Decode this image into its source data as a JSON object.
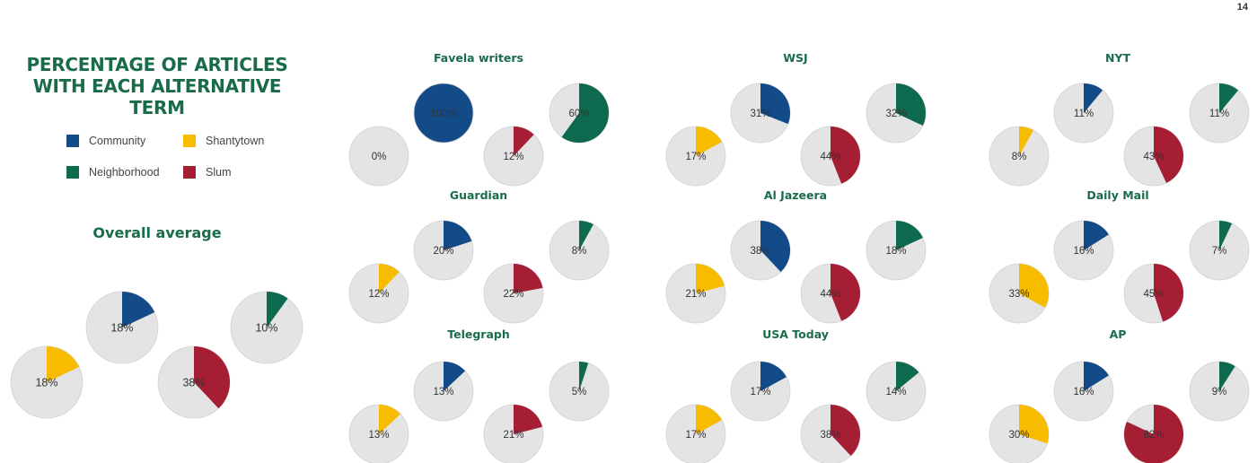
{
  "page_number": "14",
  "title": "PERCENTAGE OF ARTICLES WITH EACH ALTERNATIVE TERM",
  "colors": {
    "community": "#134a88",
    "shantytown": "#f7bb00",
    "neighborhood": "#0e6a4e",
    "slum": "#a61e34",
    "pie_bg": "#e4e4e4"
  },
  "legend": [
    {
      "label": "Community",
      "color": "#134a88"
    },
    {
      "label": "Shantytown",
      "color": "#f7bb00"
    },
    {
      "label": "Neighborhood",
      "color": "#0e6a4e"
    },
    {
      "label": "Slum",
      "color": "#a61e34"
    }
  ],
  "chart_data": {
    "type": "pie",
    "terms": [
      "Community",
      "Neighborhood",
      "Shantytown",
      "Slum"
    ],
    "groups": [
      {
        "name": "Overall average",
        "values": [
          18,
          10,
          18,
          38
        ],
        "labels": [
          "18%",
          "10%",
          "18%",
          "38%"
        ]
      },
      {
        "name": "Favela writers",
        "values": [
          100,
          60,
          0,
          12
        ],
        "labels": [
          "100%",
          "60%",
          "0%",
          "12%"
        ]
      },
      {
        "name": "WSJ",
        "values": [
          31,
          32,
          17,
          44
        ],
        "labels": [
          "31%",
          "32%",
          "17%",
          "44%"
        ]
      },
      {
        "name": "NYT",
        "values": [
          11,
          11,
          8,
          43
        ],
        "labels": [
          "11%",
          "11%",
          "8%",
          "43%"
        ]
      },
      {
        "name": "Guardian",
        "values": [
          20,
          8,
          12,
          22
        ],
        "labels": [
          "20%",
          "8%",
          "12%",
          "22%"
        ]
      },
      {
        "name": "Al Jazeera",
        "values": [
          38,
          18,
          21,
          44
        ],
        "labels": [
          "38%",
          "18%",
          "21%",
          "44%"
        ]
      },
      {
        "name": "Daily Mail",
        "values": [
          16,
          7,
          33,
          45
        ],
        "labels": [
          "16%",
          "7%",
          "33%",
          "45%"
        ]
      },
      {
        "name": "Telegraph",
        "values": [
          13,
          5,
          13,
          21
        ],
        "labels": [
          "13%",
          "5%",
          "13%",
          "21%"
        ]
      },
      {
        "name": "USA Today",
        "values": [
          17,
          14,
          17,
          38
        ],
        "labels": [
          "17%",
          "14%",
          "17%",
          "38%"
        ]
      },
      {
        "name": "AP",
        "values": [
          16,
          9,
          30,
          82
        ],
        "labels": [
          "16%",
          "9%",
          "30%",
          "82%"
        ]
      }
    ]
  }
}
